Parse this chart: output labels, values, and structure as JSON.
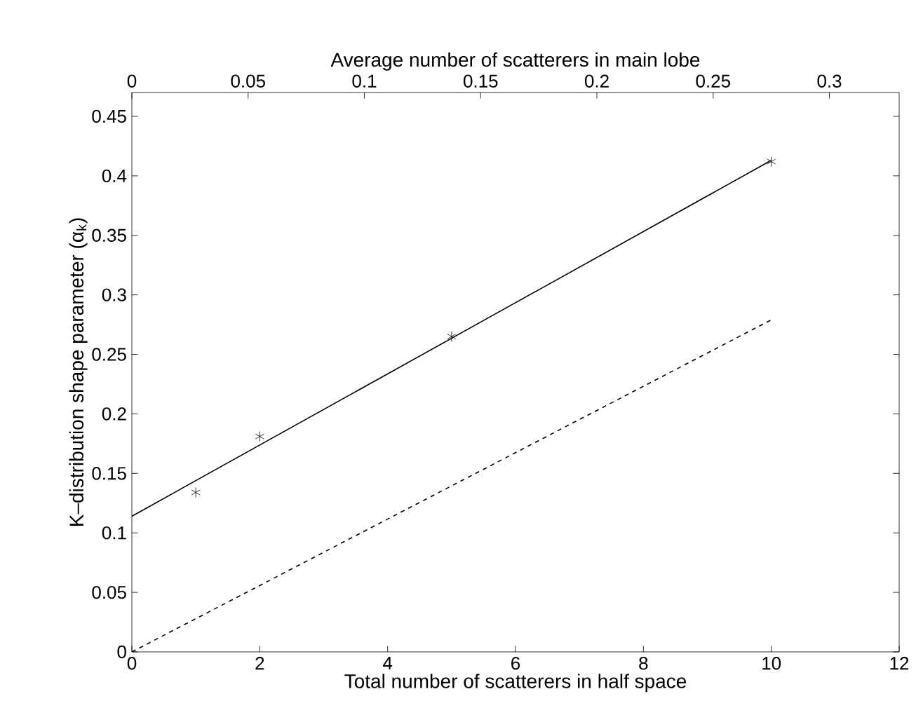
{
  "chart_data": {
    "type": "scatter",
    "xlabel": "Total number of scatterers in half space",
    "x2label": "Average number of scatterers in main lobe",
    "ylabel": "K–distribution shape parameter (α$_{k}$)",
    "xlim": [
      0,
      12
    ],
    "xticks": [
      0,
      2,
      4,
      6,
      8,
      10,
      12
    ],
    "x2lim": [
      0,
      0.33
    ],
    "x2ticks": [
      0,
      0.05,
      0.1,
      0.15,
      0.2,
      0.25,
      0.3
    ],
    "ylim": [
      0,
      0.47
    ],
    "yticks": [
      0,
      0.05,
      0.1,
      0.15,
      0.2,
      0.25,
      0.3,
      0.35,
      0.4,
      0.45
    ],
    "grid": false,
    "series": [
      {
        "marker": "cross",
        "color": "#000000",
        "x": [
          1,
          2,
          5,
          10
        ],
        "values": [
          0.134,
          0.181,
          0.265,
          0.412
        ]
      },
      {
        "type": "line",
        "line_style": "solid",
        "color": "#000000",
        "x": [
          0,
          10
        ],
        "values": [
          0.114,
          0.413
        ]
      },
      {
        "type": "line",
        "line_style": "dashed",
        "color": "#000000",
        "x": [
          0,
          10
        ],
        "values": [
          0,
          0.279
        ]
      }
    ]
  }
}
